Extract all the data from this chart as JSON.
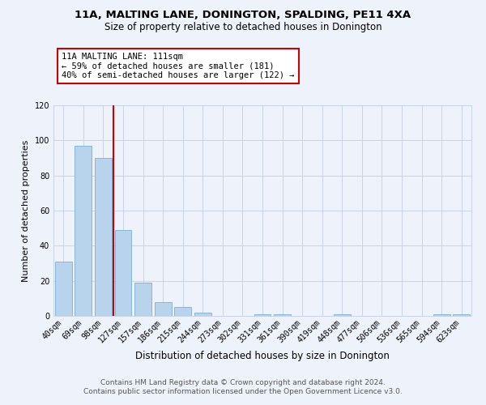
{
  "title": "11A, MALTING LANE, DONINGTON, SPALDING, PE11 4XA",
  "subtitle": "Size of property relative to detached houses in Donington",
  "xlabel": "Distribution of detached houses by size in Donington",
  "ylabel": "Number of detached properties",
  "bar_labels": [
    "40sqm",
    "69sqm",
    "98sqm",
    "127sqm",
    "157sqm",
    "186sqm",
    "215sqm",
    "244sqm",
    "273sqm",
    "302sqm",
    "331sqm",
    "361sqm",
    "390sqm",
    "419sqm",
    "448sqm",
    "477sqm",
    "506sqm",
    "536sqm",
    "565sqm",
    "594sqm",
    "623sqm"
  ],
  "bar_values": [
    31,
    97,
    90,
    49,
    19,
    8,
    5,
    2,
    0,
    0,
    1,
    1,
    0,
    0,
    1,
    0,
    0,
    0,
    0,
    1,
    1
  ],
  "bar_color": "#b8d4ec",
  "bar_edge_color": "#7aafd4",
  "vline_x": 2.5,
  "vline_color": "#cc0000",
  "annotation_text": "11A MALTING LANE: 111sqm\n← 59% of detached houses are smaller (181)\n40% of semi-detached houses are larger (122) →",
  "annotation_box_color": "#ffffff",
  "annotation_box_edge_color": "#cc0000",
  "ylim": [
    0,
    120
  ],
  "yticks": [
    0,
    20,
    40,
    60,
    80,
    100,
    120
  ],
  "footer_line1": "Contains HM Land Registry data © Crown copyright and database right 2024.",
  "footer_line2": "Contains public sector information licensed under the Open Government Licence v3.0.",
  "background_color": "#eef2fb",
  "grid_color": "#c8d4e8",
  "title_fontsize": 9.5,
  "subtitle_fontsize": 8.5,
  "xlabel_fontsize": 8.5,
  "ylabel_fontsize": 8,
  "annotation_fontsize": 7.5,
  "footer_fontsize": 6.5,
  "tick_fontsize": 7.0
}
